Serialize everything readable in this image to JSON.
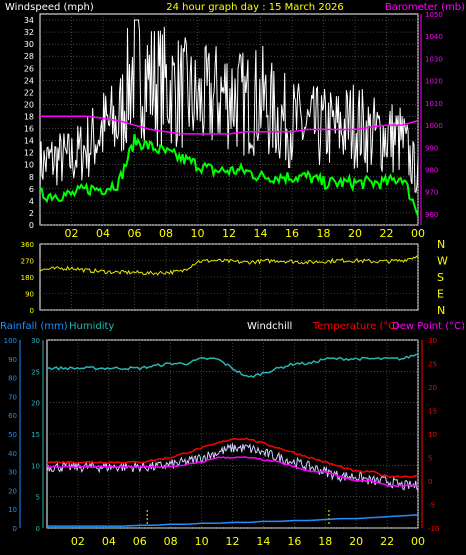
{
  "header": {
    "windspeed_label": "Windspeed (mph)",
    "title": "24 hour graph day : 15 March 2026",
    "barometer_label": "Barometer (mb)"
  },
  "lower_header": {
    "rainfall_label": "Rainfall (mm)",
    "humidity_label": "Humidity",
    "windchill_label": "Windchill",
    "temperature_label": "Temperature (°C)",
    "dewpoint_label": "Dew Point (°C)"
  },
  "colors": {
    "background": "#000000",
    "grid": "#6b6b6b",
    "frame": "#ffffff",
    "hour_labels": "#ffff00",
    "windspeed": "#ffffff",
    "wind_gust": "#e0e0e0",
    "wind_avg": "#00ff00",
    "barometer": "#ff00ff",
    "direction": "#e6e600",
    "rainfall": "#1e90ff",
    "humidity": "#2ab3b3",
    "windchill": "#d0d0ff",
    "temperature": "#ff0000",
    "dewpoint": "#ff00ff",
    "rain_axis": "#1e90ff",
    "humidity_axis": "#2ab3b3"
  },
  "x_ticks": [
    "02",
    "04",
    "06",
    "08",
    "10",
    "12",
    "14",
    "16",
    "18",
    "20",
    "22",
    "00"
  ],
  "direction_labels": [
    "N",
    "W",
    "S",
    "E",
    "N"
  ],
  "chart_data": [
    {
      "type": "line",
      "title": "24 hour graph day : 15 March 2026",
      "left_axis": {
        "label": "Windspeed (mph)",
        "ylim": [
          0,
          35
        ],
        "ticks": [
          0,
          2,
          4,
          6,
          8,
          10,
          12,
          14,
          16,
          18,
          20,
          22,
          24,
          26,
          28,
          30,
          32,
          34
        ]
      },
      "right_axis": {
        "label": "Barometer (mb)",
        "ylim": [
          955,
          1050
        ],
        "ticks": [
          960,
          970,
          980,
          990,
          1000,
          1010,
          1020,
          1030,
          1040,
          1050
        ]
      },
      "x": [
        "00",
        "01",
        "02",
        "03",
        "04",
        "05",
        "06",
        "07",
        "08",
        "09",
        "10",
        "11",
        "12",
        "13",
        "14",
        "15",
        "16",
        "17",
        "18",
        "19",
        "20",
        "21",
        "22",
        "23",
        "00"
      ],
      "series": [
        {
          "name": "Windspeed (mph)",
          "axis": "left",
          "values": [
            10,
            11,
            11,
            13,
            16,
            17,
            27,
            24,
            23,
            22,
            20,
            21,
            22,
            20,
            21,
            18,
            17,
            16,
            16,
            16,
            17,
            15,
            15,
            14,
            8
          ]
        },
        {
          "name": "Wind average",
          "axis": "left",
          "values": [
            5,
            5,
            5,
            6,
            6,
            7,
            14,
            13,
            12,
            11,
            10,
            9,
            9,
            9,
            8,
            8,
            8,
            8,
            7,
            7,
            7,
            7,
            7,
            8,
            2
          ]
        },
        {
          "name": "Barometer (mb)",
          "axis": "right",
          "values": [
            1004,
            1004,
            1004,
            1004,
            1003,
            1002,
            1000,
            998,
            997,
            996,
            996,
            996,
            996,
            997,
            997,
            997,
            997,
            998,
            998,
            998,
            998,
            999,
            1000,
            1000,
            1002
          ]
        }
      ]
    },
    {
      "type": "line",
      "ylim": [
        0,
        360
      ],
      "yticks": [
        0,
        90,
        180,
        270,
        360
      ],
      "x": [
        "00",
        "01",
        "02",
        "03",
        "04",
        "05",
        "06",
        "07",
        "08",
        "09",
        "10",
        "11",
        "12",
        "13",
        "14",
        "15",
        "16",
        "17",
        "18",
        "19",
        "20",
        "21",
        "22",
        "23",
        "00"
      ],
      "series": [
        {
          "name": "Wind direction",
          "values": [
            220,
            225,
            230,
            215,
            210,
            205,
            205,
            200,
            205,
            210,
            265,
            270,
            265,
            260,
            265,
            270,
            265,
            260,
            265,
            270,
            270,
            265,
            265,
            270,
            295
          ]
        }
      ]
    },
    {
      "type": "line",
      "left_axis": {
        "label": "Rainfall (mm)",
        "ylim": [
          0,
          100
        ],
        "ticks": [
          0,
          10,
          20,
          30,
          40,
          50,
          60,
          70,
          80,
          90,
          100
        ]
      },
      "humidity_axis": {
        "label": "Humidity",
        "ylim": [
          0,
          30
        ],
        "ticks": [
          0,
          5,
          10,
          15,
          20,
          25,
          30
        ]
      },
      "right_axis": {
        "label": "Temperature (°C)",
        "ylim": [
          -10,
          30
        ],
        "ticks": [
          -10,
          -5,
          0,
          5,
          10,
          15,
          20,
          25,
          30
        ]
      },
      "x": [
        "00",
        "01",
        "02",
        "03",
        "04",
        "05",
        "06",
        "07",
        "08",
        "09",
        "10",
        "11",
        "12",
        "13",
        "14",
        "15",
        "16",
        "17",
        "18",
        "19",
        "20",
        "21",
        "22",
        "23",
        "00"
      ],
      "series": [
        {
          "name": "Rainfall (mm)",
          "axis": "left",
          "values": [
            1,
            1,
            1,
            1,
            1,
            1,
            1.5,
            1.5,
            2,
            2,
            2.5,
            2.5,
            3,
            3,
            3.5,
            3.5,
            4,
            4,
            4.5,
            5,
            5,
            5.5,
            6,
            6.5,
            7
          ]
        },
        {
          "name": "Humidity",
          "axis": "right",
          "values": [
            24,
            24,
            24,
            24,
            24,
            24,
            24,
            24.5,
            25,
            25,
            26,
            26,
            24,
            22,
            23,
            24,
            25,
            25,
            26,
            26,
            26,
            26,
            26,
            26,
            27
          ]
        },
        {
          "name": "Windchill",
          "axis": "right",
          "values": [
            3,
            3,
            3,
            3,
            3,
            3,
            3,
            3,
            3.5,
            4,
            5,
            6,
            7,
            7,
            6,
            5,
            4,
            3,
            2,
            1,
            1,
            0,
            0,
            -1,
            -1
          ]
        },
        {
          "name": "Temperature (°C)",
          "axis": "right",
          "values": [
            4,
            4,
            4,
            4,
            4,
            4,
            4,
            4.5,
            5,
            6,
            7,
            8,
            9,
            9,
            8,
            7,
            6,
            5,
            4,
            3,
            2,
            2,
            1,
            1,
            1
          ]
        },
        {
          "name": "Dew Point (°C)",
          "axis": "right",
          "values": [
            3,
            3,
            3,
            3,
            3,
            3,
            3,
            3,
            3,
            3.5,
            4,
            5,
            5,
            5,
            4.5,
            4,
            3,
            2,
            2,
            1,
            0,
            0,
            -1,
            -1,
            -1
          ]
        }
      ]
    }
  ]
}
